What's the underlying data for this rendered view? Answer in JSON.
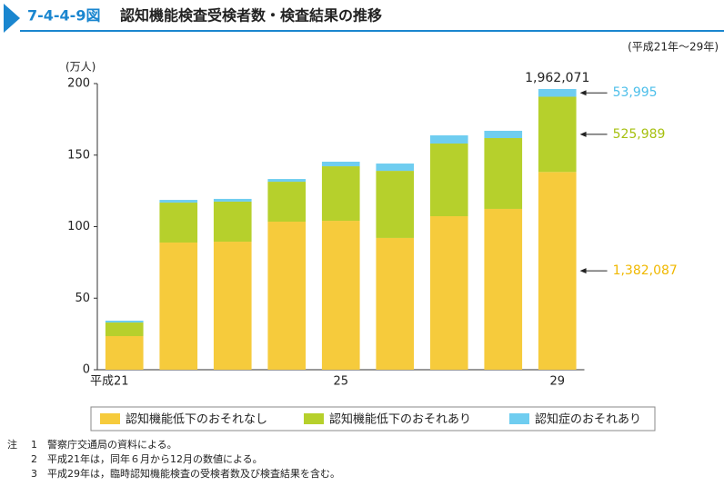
{
  "chart_data": {
    "type": "stacked-bar",
    "figure_number": "7-4-4-9図",
    "title": "認知機能検査受検者数・検査結果の推移",
    "subtitle": "(平成21年～29年)",
    "y_unit": "(万人)",
    "categories": [
      "平成21",
      null,
      null,
      null,
      "25",
      null,
      null,
      null,
      "29"
    ],
    "series": [
      {
        "name": "認知機能低下のおそれなし",
        "color": "#f6cb3c",
        "label_color": "#f0b800",
        "values": [
          23.5,
          88.9,
          89.5,
          103.5,
          104.1,
          92.1,
          107.3,
          112.4,
          138.2087
        ],
        "value_labels": [
          null,
          null,
          null,
          null,
          null,
          null,
          null,
          null,
          "1,382,087"
        ]
      },
      {
        "name": "認知機能低下のおそれあり",
        "color": "#b6d02c",
        "label_color": "#a6c00f",
        "values": [
          9.5,
          27.9,
          28,
          27.9,
          38.1,
          46.9,
          50.8,
          49.5,
          52.5989
        ],
        "value_labels": [
          null,
          null,
          null,
          null,
          null,
          null,
          null,
          null,
          "525,989"
        ]
      },
      {
        "name": "認知症のおそれあり",
        "color": "#6fcdf0",
        "label_color": "#4dbfea",
        "values": [
          1.3,
          1.9,
          1.9,
          1.9,
          3.2,
          5.1,
          5.7,
          5.1,
          5.3995
        ],
        "value_labels": [
          null,
          null,
          null,
          null,
          null,
          null,
          null,
          null,
          "53,995"
        ]
      }
    ],
    "total_label": {
      "value": 196.2071,
      "label": "1,962,071"
    },
    "ylim": [
      0,
      200
    ],
    "yticks": [
      0,
      50,
      100,
      150,
      200
    ],
    "grid": false,
    "note_head": "注",
    "notes": [
      {
        "num": "1",
        "text": "警察庁交通局の資料による。"
      },
      {
        "num": "2",
        "text": "平成21年は，同年６月から12月の数値による。"
      },
      {
        "num": "3",
        "text": "平成29年は，臨時認知機能検査の受検者数及び検査結果を含む。"
      }
    ]
  }
}
